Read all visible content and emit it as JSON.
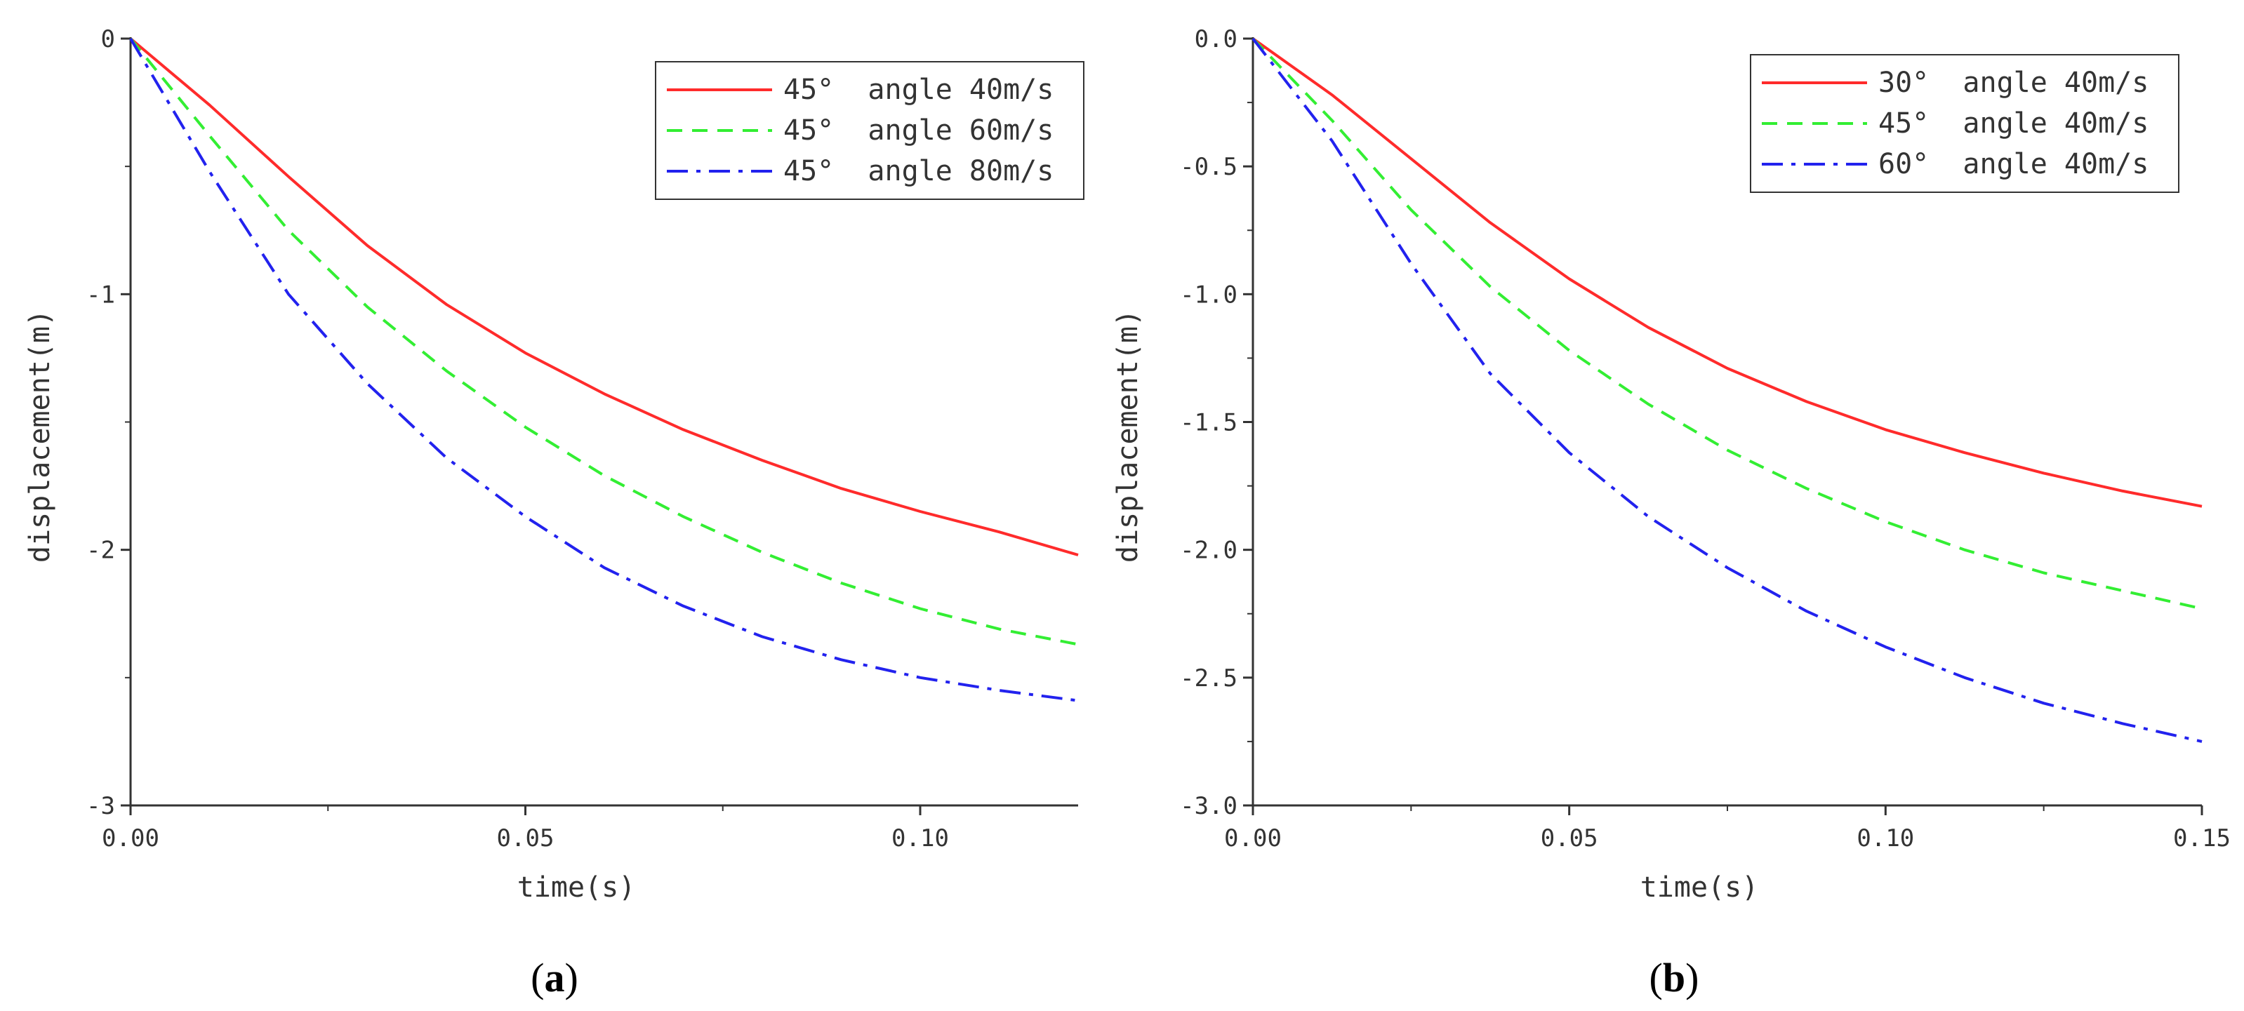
{
  "figure": {
    "panels": [
      {
        "label_open": "(",
        "label_letter": "a",
        "label_close": ")"
      },
      {
        "label_open": "(",
        "label_letter": "b",
        "label_close": ")"
      }
    ]
  },
  "chart_data": [
    {
      "type": "line",
      "panel": "a",
      "title": "",
      "xlabel": "time(s)",
      "ylabel": "displacement(m)",
      "xlim": [
        0,
        0.12
      ],
      "ylim": [
        -3,
        0
      ],
      "xticks": [
        0,
        0.05,
        0.1
      ],
      "xtick_labels": [
        "0.00",
        "0.05",
        "0.10"
      ],
      "xminor": [
        0.025,
        0.075
      ],
      "yticks": [
        0,
        -1,
        -2,
        -3
      ],
      "ytick_labels": [
        "0",
        "-1",
        "-2",
        "-3"
      ],
      "yminor": [
        -0.5,
        -1.5,
        -2.5
      ],
      "grid": false,
      "legend_position": "top-right",
      "x": [
        0,
        0.01,
        0.02,
        0.03,
        0.04,
        0.05,
        0.06,
        0.07,
        0.08,
        0.09,
        0.1,
        0.11,
        0.12
      ],
      "series": [
        {
          "name": "45°  angle 40m/s",
          "color": "#ff2b2b",
          "dash": "solid",
          "values": [
            0,
            -0.26,
            -0.54,
            -0.81,
            -1.04,
            -1.23,
            -1.39,
            -1.53,
            -1.65,
            -1.76,
            -1.85,
            -1.93,
            -2.02
          ]
        },
        {
          "name": "45°  angle 60m/s",
          "color": "#33ee33",
          "dash": "dash",
          "values": [
            0,
            -0.38,
            -0.75,
            -1.05,
            -1.3,
            -1.52,
            -1.71,
            -1.87,
            -2.01,
            -2.13,
            -2.23,
            -2.31,
            -2.37
          ]
        },
        {
          "name": "45°  angle 80m/s",
          "color": "#2222ee",
          "dash": "dashdot",
          "values": [
            0,
            -0.52,
            -1.0,
            -1.35,
            -1.64,
            -1.87,
            -2.07,
            -2.22,
            -2.34,
            -2.43,
            -2.5,
            -2.55,
            -2.59
          ]
        }
      ]
    },
    {
      "type": "line",
      "panel": "b",
      "title": "",
      "xlabel": "time(s)",
      "ylabel": "displacement(m)",
      "xlim": [
        0,
        0.15
      ],
      "ylim": [
        -3.0,
        0.0
      ],
      "xticks": [
        0,
        0.05,
        0.1,
        0.15
      ],
      "xtick_labels": [
        "0.00",
        "0.05",
        "0.10",
        "0.15"
      ],
      "xminor": [
        0.025,
        0.075,
        0.125
      ],
      "yticks": [
        0.0,
        -0.5,
        -1.0,
        -1.5,
        -2.0,
        -2.5,
        -3.0
      ],
      "ytick_labels": [
        "0.0",
        "-0.5",
        "-1.0",
        "-1.5",
        "-2.0",
        "-2.5",
        "-3.0"
      ],
      "yminor": [
        -0.25,
        -0.75,
        -1.25,
        -1.75,
        -2.25,
        -2.75
      ],
      "grid": false,
      "legend_position": "top-right",
      "x": [
        0,
        0.0125,
        0.025,
        0.0375,
        0.05,
        0.0625,
        0.075,
        0.0875,
        0.1,
        0.1125,
        0.125,
        0.1375,
        0.15
      ],
      "series": [
        {
          "name": "30°  angle 40m/s",
          "color": "#ff2b2b",
          "dash": "solid",
          "values": [
            0,
            -0.22,
            -0.47,
            -0.72,
            -0.94,
            -1.13,
            -1.29,
            -1.42,
            -1.53,
            -1.62,
            -1.7,
            -1.77,
            -1.83
          ]
        },
        {
          "name": "45°  angle 40m/s",
          "color": "#33ee33",
          "dash": "dash",
          "values": [
            0,
            -0.32,
            -0.67,
            -0.97,
            -1.22,
            -1.43,
            -1.61,
            -1.76,
            -1.89,
            -2.0,
            -2.09,
            -2.16,
            -2.23
          ]
        },
        {
          "name": "60°  angle 40m/s",
          "color": "#2222ee",
          "dash": "dashdot",
          "values": [
            0,
            -0.4,
            -0.88,
            -1.31,
            -1.62,
            -1.87,
            -2.07,
            -2.24,
            -2.38,
            -2.5,
            -2.6,
            -2.68,
            -2.75
          ]
        }
      ]
    }
  ]
}
